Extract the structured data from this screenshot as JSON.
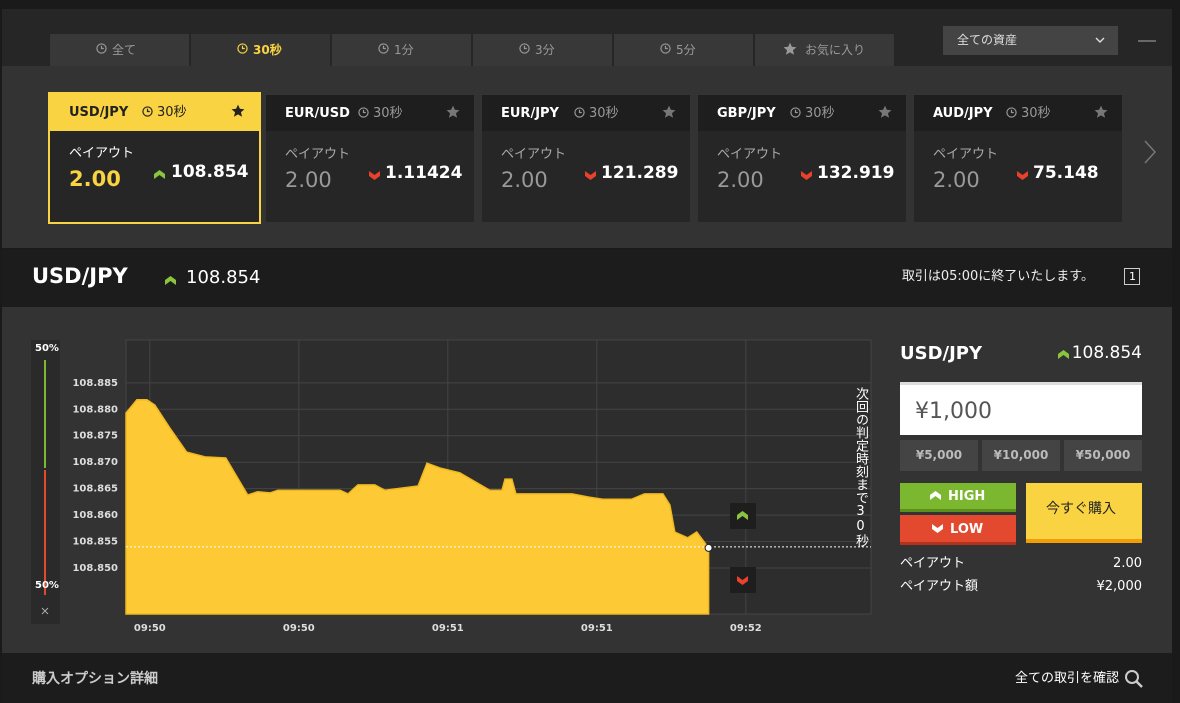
{
  "window": {
    "tabs": [
      "全て",
      "30秒",
      "1分",
      "3分",
      "5分",
      "お気に入り"
    ],
    "active_tab": 1,
    "asset_filter": "全ての資産"
  },
  "cards": [
    {
      "pair": "USD/JPY",
      "duration": "30秒",
      "payout_label": "ペイアウト",
      "payout": "2.00",
      "rate": "108.854",
      "direction": "up"
    },
    {
      "pair": "EUR/USD",
      "duration": "30秒",
      "payout_label": "ペイアウト",
      "payout": "2.00",
      "rate": "1.11424",
      "direction": "down"
    },
    {
      "pair": "EUR/JPY",
      "duration": "30秒",
      "payout_label": "ペイアウト",
      "payout": "2.00",
      "rate": "121.289",
      "direction": "down"
    },
    {
      "pair": "GBP/JPY",
      "duration": "30秒",
      "payout_label": "ペイアウト",
      "payout": "2.00",
      "rate": "132.919",
      "direction": "down"
    },
    {
      "pair": "AUD/JPY",
      "duration": "30秒",
      "payout_label": "ペイアウト",
      "payout": "2.00",
      "rate": "75.148",
      "direction": "down"
    }
  ],
  "selected_card": 0,
  "header": {
    "pair": "USD/JPY",
    "rate": "108.854",
    "notice": "取引は05:00に終了いたします。",
    "count": "1"
  },
  "sentiment": {
    "up": "50%",
    "down": "50%"
  },
  "chart_data": {
    "type": "area",
    "color": "#fdc935",
    "grid": true,
    "x": [
      -4.8,
      -2.6,
      -0.6,
      1.0,
      4.0,
      7.4,
      11.1,
      15.3,
      19.7,
      21.7,
      24.2,
      25.8,
      38.3,
      39.9,
      41.9,
      45.3,
      47.3,
      54.0,
      55.8,
      58.4,
      62.4,
      68.4,
      70.9,
      71.5,
      72.9,
      73.7,
      85.0,
      88.4,
      91.2,
      97.0,
      99.6,
      103.3,
      104.7,
      105.7,
      108.3,
      110.1,
      112.5
    ],
    "values": [
      108.8793,
      108.8818,
      108.8818,
      108.8808,
      108.8765,
      108.8719,
      108.871,
      108.8708,
      108.8638,
      108.8644,
      108.8642,
      108.8647,
      108.8647,
      108.864,
      108.8657,
      108.8657,
      108.8647,
      108.8655,
      108.8698,
      108.8689,
      108.868,
      108.8647,
      108.8647,
      108.8668,
      108.8668,
      108.864,
      108.864,
      108.8634,
      108.863,
      108.863,
      108.864,
      108.864,
      108.8619,
      108.8568,
      108.8557,
      108.8568,
      108.8538
    ],
    "xlim": [
      -4.8,
      145.2
    ],
    "ylim": [
      108.8413,
      108.8931
    ],
    "xticks": [
      {
        "value": 0,
        "label": "09:50"
      },
      {
        "value": 30,
        "label": "09:50"
      },
      {
        "value": 60,
        "label": "09:51"
      },
      {
        "value": 90,
        "label": "09:51"
      },
      {
        "value": 120,
        "label": "09:52"
      }
    ],
    "yticks": [
      108.885,
      {
        "value": 108.88,
        "label": "108.880"
      },
      108.875,
      {
        "value": 108.87,
        "label": "108.870"
      },
      108.865,
      {
        "value": 108.86,
        "label": "108.860"
      },
      108.855,
      {
        "value": 108.85,
        "label": "108.850"
      }
    ],
    "current": 108.854,
    "countdown": "次回の判定時刻まで30秒"
  },
  "order": {
    "pair": "USD/JPY",
    "rate": "108.854",
    "amount": "¥1,000",
    "presets": [
      "¥5,000",
      "¥10,000",
      "¥50,000"
    ],
    "high": "HIGH",
    "low": "LOW",
    "buy": "今すぐ購入",
    "payout_label": "ペイアウト",
    "payout": "2.00",
    "payout_amount_label": "ペイアウト額",
    "payout_amount": "¥2,000"
  },
  "footer": {
    "details": "購入オプション詳細",
    "all_trades": "全ての取引を確認"
  }
}
